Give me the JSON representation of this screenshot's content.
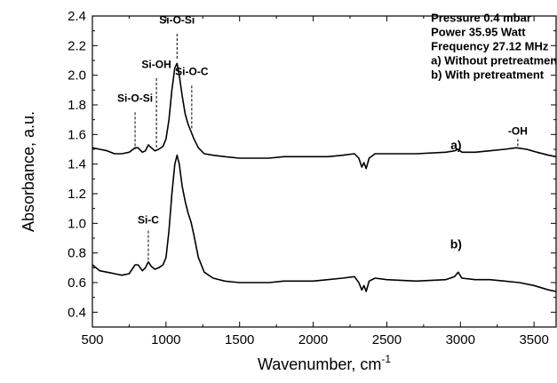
{
  "chart_data": {
    "type": "line",
    "title": "",
    "xlabel": "Wavenumber, cm",
    "xlabel_sup": "-1",
    "ylabel": "Absorbance, a.u.",
    "xlim": [
      500,
      3650
    ],
    "ylim": [
      0.3,
      2.4
    ],
    "x_reversed": false,
    "grid": false,
    "legend": "none",
    "xticks": [
      500,
      1000,
      1500,
      2000,
      2500,
      3000,
      3500
    ],
    "yticks": [
      0.4,
      0.6,
      0.8,
      1.0,
      1.2,
      1.4,
      1.6,
      1.8,
      2.0,
      2.2,
      2.4
    ],
    "ytick_labels": [
      "0.4",
      "0.6",
      "0.8",
      "1.0",
      "1.2",
      "1.4",
      "1.6",
      "1.8",
      "2.0",
      "2.2",
      "2.4"
    ],
    "series": [
      {
        "label": "a)",
        "label_at": [
          2970,
          1.5
        ],
        "color": "#000000",
        "points": [
          [
            500,
            1.51
          ],
          [
            550,
            1.5
          ],
          [
            600,
            1.49
          ],
          [
            650,
            1.47
          ],
          [
            700,
            1.47
          ],
          [
            750,
            1.48
          ],
          [
            790,
            1.51
          ],
          [
            810,
            1.51
          ],
          [
            840,
            1.48
          ],
          [
            860,
            1.49
          ],
          [
            880,
            1.53
          ],
          [
            900,
            1.51
          ],
          [
            925,
            1.49
          ],
          [
            950,
            1.5
          ],
          [
            980,
            1.52
          ],
          [
            1000,
            1.57
          ],
          [
            1020,
            1.7
          ],
          [
            1040,
            1.9
          ],
          [
            1060,
            2.05
          ],
          [
            1075,
            2.08
          ],
          [
            1090,
            2.0
          ],
          [
            1110,
            1.86
          ],
          [
            1130,
            1.74
          ],
          [
            1150,
            1.67
          ],
          [
            1170,
            1.62
          ],
          [
            1190,
            1.57
          ],
          [
            1220,
            1.51
          ],
          [
            1260,
            1.47
          ],
          [
            1320,
            1.46
          ],
          [
            1400,
            1.45
          ],
          [
            1500,
            1.44
          ],
          [
            1600,
            1.44
          ],
          [
            1700,
            1.44
          ],
          [
            1800,
            1.45
          ],
          [
            1900,
            1.45
          ],
          [
            2000,
            1.45
          ],
          [
            2100,
            1.45
          ],
          [
            2200,
            1.46
          ],
          [
            2280,
            1.47
          ],
          [
            2310,
            1.44
          ],
          [
            2330,
            1.38
          ],
          [
            2345,
            1.41
          ],
          [
            2360,
            1.37
          ],
          [
            2380,
            1.44
          ],
          [
            2420,
            1.47
          ],
          [
            2500,
            1.47
          ],
          [
            2700,
            1.47
          ],
          [
            2900,
            1.48
          ],
          [
            2960,
            1.49
          ],
          [
            2985,
            1.5
          ],
          [
            3010,
            1.48
          ],
          [
            3100,
            1.48
          ],
          [
            3200,
            1.49
          ],
          [
            3300,
            1.5
          ],
          [
            3380,
            1.51
          ],
          [
            3450,
            1.5
          ],
          [
            3520,
            1.48
          ],
          [
            3600,
            1.46
          ],
          [
            3650,
            1.45
          ]
        ]
      },
      {
        "label": "b)",
        "label_at": [
          2970,
          0.83
        ],
        "color": "#000000",
        "points": [
          [
            500,
            0.72
          ],
          [
            550,
            0.68
          ],
          [
            600,
            0.67
          ],
          [
            650,
            0.66
          ],
          [
            700,
            0.65
          ],
          [
            750,
            0.66
          ],
          [
            790,
            0.72
          ],
          [
            810,
            0.72
          ],
          [
            840,
            0.68
          ],
          [
            860,
            0.7
          ],
          [
            880,
            0.74
          ],
          [
            900,
            0.71
          ],
          [
            925,
            0.69
          ],
          [
            950,
            0.7
          ],
          [
            980,
            0.72
          ],
          [
            1000,
            0.77
          ],
          [
            1020,
            0.95
          ],
          [
            1040,
            1.2
          ],
          [
            1060,
            1.4
          ],
          [
            1075,
            1.46
          ],
          [
            1090,
            1.4
          ],
          [
            1110,
            1.25
          ],
          [
            1130,
            1.15
          ],
          [
            1150,
            1.07
          ],
          [
            1170,
            1.01
          ],
          [
            1190,
            0.92
          ],
          [
            1220,
            0.77
          ],
          [
            1260,
            0.67
          ],
          [
            1320,
            0.63
          ],
          [
            1400,
            0.61
          ],
          [
            1500,
            0.6
          ],
          [
            1600,
            0.6
          ],
          [
            1700,
            0.6
          ],
          [
            1800,
            0.61
          ],
          [
            1900,
            0.61
          ],
          [
            2000,
            0.61
          ],
          [
            2100,
            0.62
          ],
          [
            2200,
            0.63
          ],
          [
            2280,
            0.64
          ],
          [
            2310,
            0.6
          ],
          [
            2330,
            0.55
          ],
          [
            2345,
            0.58
          ],
          [
            2360,
            0.54
          ],
          [
            2380,
            0.61
          ],
          [
            2420,
            0.63
          ],
          [
            2500,
            0.62
          ],
          [
            2700,
            0.61
          ],
          [
            2900,
            0.62
          ],
          [
            2960,
            0.64
          ],
          [
            2985,
            0.67
          ],
          [
            3010,
            0.63
          ],
          [
            3100,
            0.62
          ],
          [
            3200,
            0.62
          ],
          [
            3300,
            0.61
          ],
          [
            3400,
            0.6
          ],
          [
            3500,
            0.58
          ],
          [
            3600,
            0.55
          ],
          [
            3650,
            0.54
          ]
        ]
      }
    ],
    "annotations": [
      {
        "text": "Si-O-Si",
        "x": 790,
        "y_text": 1.82,
        "y_line_top": 1.75,
        "y_line_bottom": 1.5
      },
      {
        "text": "Si-OH",
        "x": 935,
        "y_text": 2.05,
        "y_line_top": 1.98,
        "y_line_bottom": 1.5
      },
      {
        "text": "Si-O-Si",
        "x": 1075,
        "y_text": 2.35,
        "y_line_top": 2.28,
        "y_line_bottom": 2.1
      },
      {
        "text": "Si-O-C",
        "x": 1175,
        "y_text": 2.0,
        "y_line_top": 1.93,
        "y_line_bottom": 1.63
      },
      {
        "text": "Si-C",
        "x": 880,
        "y_text": 1.0,
        "y_line_top": 0.95,
        "y_line_bottom": 0.74
      },
      {
        "text": "-OH",
        "x": 3390,
        "y_text": 1.6,
        "y_line_top": 1.57,
        "y_line_bottom": 1.51
      }
    ],
    "info_lines": [
      "Pressure 0.4 mbar",
      "Power  35.95 Watt",
      "Frequency  27.12 MHz",
      "a) Without pretreatment",
      "b) With pretreatment"
    ],
    "info_at": [
      2800,
      2.36
    ]
  }
}
